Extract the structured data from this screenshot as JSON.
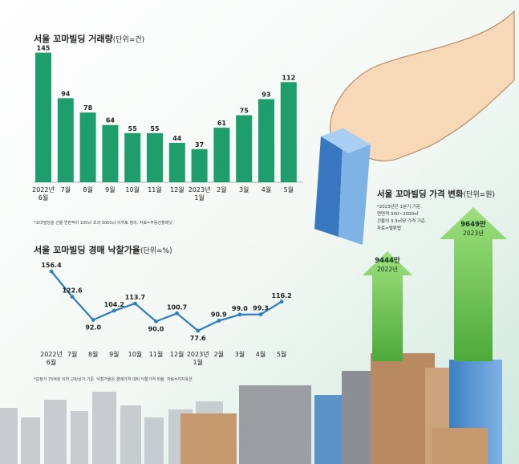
{
  "chart_data": [
    {
      "type": "bar",
      "title": "서울 꼬마빌딩 거래량",
      "unit": "(단위=건)",
      "categories": [
        "2022년\n6월",
        "7월",
        "8월",
        "9월",
        "10월",
        "11월",
        "12월",
        "2023년\n1월",
        "2월",
        "3월",
        "4월",
        "5월"
      ],
      "values": [
        145,
        94,
        78,
        64,
        55,
        55,
        44,
        37,
        61,
        75,
        93,
        112
      ],
      "footnote": "*꼬마빌딩을 건물 연면적이 100㎡ 초과 3000㎡ 이하로 정의. 자료=부동산플래닛",
      "color": "#1f9e6d"
    },
    {
      "type": "line",
      "title": "서울 꼬마빌딩 경매 낙찰가율",
      "unit": "(단위=%)",
      "categories": [
        "2022년\n6월",
        "7월",
        "8월",
        "9월",
        "10월",
        "11월",
        "12월",
        "2023년\n1월",
        "2월",
        "3월",
        "4월",
        "5월"
      ],
      "values": [
        156.4,
        122.6,
        92.0,
        104.2,
        113.7,
        90.0,
        100.7,
        77.6,
        90.9,
        99.0,
        99.3,
        116.2
      ],
      "value_labels": [
        "156.4",
        "122.6",
        "92.0",
        "104.2",
        "113.7",
        "90.0",
        "100.7",
        "77.6",
        "90.9",
        "99.0",
        "99.3",
        "116.2"
      ],
      "footnote": "*감정가 75억원 이하 근린상가 기준. 낙찰가율은 경매가격 대비 낙찰가격 비율. 자료=지지옥션",
      "color": "#2e7cc4"
    },
    {
      "type": "bar",
      "title": "서울 꼬마빌딩 가격 변화",
      "unit": "(단위=원)",
      "categories": [
        "2022년",
        "2023년"
      ],
      "values": [
        9444,
        9649
      ],
      "value_labels": [
        "9444만",
        "9649만"
      ],
      "notes": [
        "*2023년은 1분기 기준.",
        "연면적 330~2000㎡",
        "건물의 3.3㎡당 가격 기준.",
        "자료=밸류맵"
      ]
    }
  ]
}
